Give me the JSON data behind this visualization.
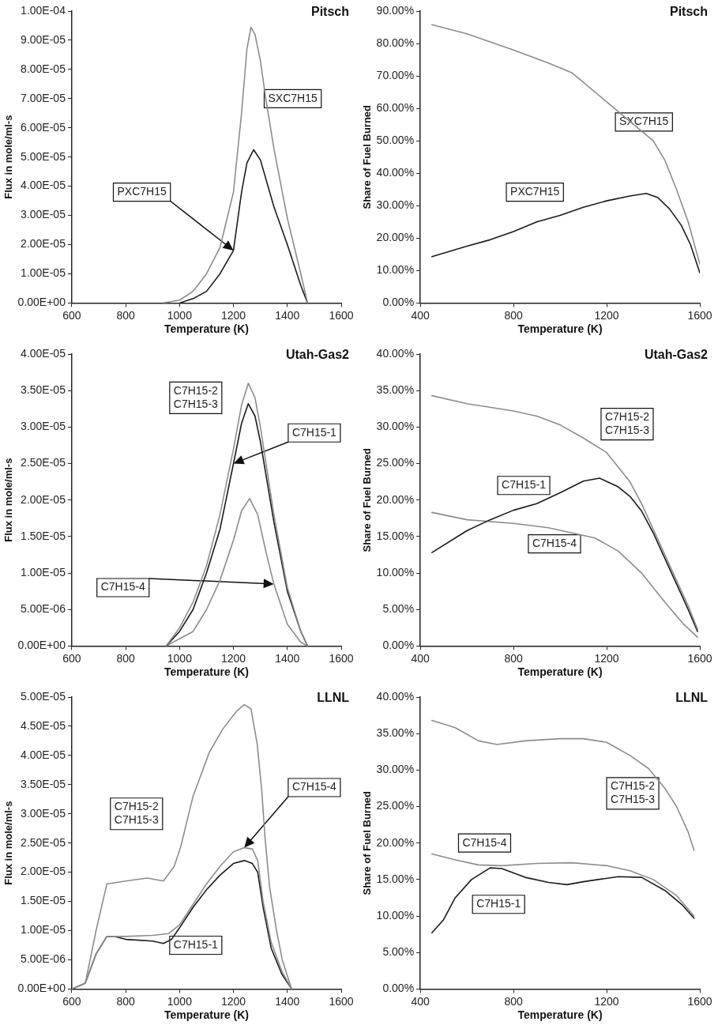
{
  "chart_data": [
    {
      "type": "line",
      "title": "Pitsch",
      "xlabel": "Temperature (K)",
      "ylabel": "Flux in mole/ml-s",
      "xlim": [
        600,
        1600
      ],
      "xticks": [
        600,
        800,
        1000,
        1200,
        1400,
        1600
      ],
      "ylim": [
        0,
        0.0001
      ],
      "yticks": [
        {
          "value": 0,
          "label": "0.00E+00"
        },
        {
          "value": 1e-05,
          "label": "1.00E-05"
        },
        {
          "value": 2e-05,
          "label": "2.00E-05"
        },
        {
          "value": 3e-05,
          "label": "3.00E-05"
        },
        {
          "value": 4e-05,
          "label": "4.00E-05"
        },
        {
          "value": 5e-05,
          "label": "5.00E-05"
        },
        {
          "value": 6e-05,
          "label": "6.00E-05"
        },
        {
          "value": 7e-05,
          "label": "7.00E-05"
        },
        {
          "value": 8e-05,
          "label": "8.00E-05"
        },
        {
          "value": 9e-05,
          "label": "9.00E-05"
        },
        {
          "value": 0.0001,
          "label": "1.00E-04"
        }
      ],
      "grid": false,
      "legend": false,
      "series": [
        {
          "name": "SXC7H15",
          "color": "#8c8c8c",
          "x": [
            940,
            1000,
            1050,
            1100,
            1150,
            1200,
            1230,
            1250,
            1265,
            1280,
            1300,
            1320,
            1350,
            1400,
            1450,
            1475
          ],
          "values": [
            0,
            1e-06,
            4e-06,
            1e-05,
            1.9e-05,
            3.8e-05,
            6.5e-05,
            8.7e-05,
            9.45e-05,
            9.2e-05,
            8.3e-05,
            7e-05,
            5.3e-05,
            2.9e-05,
            1e-05,
            0
          ]
        },
        {
          "name": "PXC7H15",
          "color": "#1a1a1a",
          "x": [
            1000,
            1050,
            1100,
            1150,
            1200,
            1230,
            1250,
            1275,
            1300,
            1350,
            1400,
            1450,
            1475
          ],
          "values": [
            0,
            1.5e-06,
            4e-06,
            1e-05,
            1.8e-05,
            3.8e-05,
            4.8e-05,
            5.25e-05,
            4.9e-05,
            3.3e-05,
            2e-05,
            6e-06,
            0
          ]
        }
      ]
    },
    {
      "type": "line",
      "title": "Pitsch",
      "xlabel": "Temperature (K)",
      "ylabel": "Share of Fuel Burned",
      "xlim": [
        400,
        1600
      ],
      "xticks": [
        400,
        800,
        1200,
        1600
      ],
      "ylim": [
        0,
        90
      ],
      "yticks": [
        {
          "value": 0,
          "label": "0.00%"
        },
        {
          "value": 10,
          "label": "10.00%"
        },
        {
          "value": 20,
          "label": "20.00%"
        },
        {
          "value": 30,
          "label": "30.00%"
        },
        {
          "value": 40,
          "label": "40.00%"
        },
        {
          "value": 50,
          "label": "50.00%"
        },
        {
          "value": 60,
          "label": "60.00%"
        },
        {
          "value": 70,
          "label": "70.00%"
        },
        {
          "value": 80,
          "label": "80.00%"
        },
        {
          "value": 90,
          "label": "90.00%"
        }
      ],
      "grid": false,
      "legend": false,
      "series": [
        {
          "name": "SXC7H15",
          "color": "#8c8c8c",
          "x": [
            450,
            600,
            800,
            950,
            1050,
            1200,
            1300,
            1400,
            1450,
            1500,
            1550,
            1600
          ],
          "values": [
            85.8,
            83,
            78,
            74,
            71,
            62,
            56,
            50,
            44,
            35,
            25,
            12
          ]
        },
        {
          "name": "PXC7H15",
          "color": "#1a1a1a",
          "x": [
            450,
            600,
            700,
            800,
            900,
            1000,
            1100,
            1200,
            1300,
            1370,
            1420,
            1470,
            1520,
            1560,
            1600
          ],
          "values": [
            14.3,
            17.5,
            19.5,
            22,
            25,
            27,
            29.5,
            31.5,
            33,
            33.8,
            32.5,
            29,
            24,
            18,
            9.3
          ]
        }
      ]
    },
    {
      "type": "line",
      "title": "Utah-Gas2",
      "xlabel": "Temperature (K)",
      "ylabel": "Flux in mole/ml-s",
      "xlim": [
        600,
        1600
      ],
      "xticks": [
        600,
        800,
        1000,
        1200,
        1400,
        1600
      ],
      "ylim": [
        0,
        4e-05
      ],
      "yticks": [
        {
          "value": 0,
          "label": "0.00E+00"
        },
        {
          "value": 5e-06,
          "label": "5.00E-06"
        },
        {
          "value": 1e-05,
          "label": "1.00E-05"
        },
        {
          "value": 1.5e-05,
          "label": "1.50E-05"
        },
        {
          "value": 2e-05,
          "label": "2.00E-05"
        },
        {
          "value": 2.5e-05,
          "label": "2.50E-05"
        },
        {
          "value": 3e-05,
          "label": "3.00E-05"
        },
        {
          "value": 3.5e-05,
          "label": "3.50E-05"
        },
        {
          "value": 4e-05,
          "label": "4.00E-05"
        }
      ],
      "grid": false,
      "legend": false,
      "series": [
        {
          "name": "C7H15-2\nC7H15-3",
          "color": "#8c8c8c",
          "x": [
            950,
            1000,
            1050,
            1100,
            1150,
            1200,
            1230,
            1255,
            1280,
            1300,
            1350,
            1400,
            1450,
            1475
          ],
          "values": [
            0,
            2.5e-06,
            6e-06,
            1.1e-05,
            1.8e-05,
            2.7e-05,
            3.3e-05,
            3.6e-05,
            3.4e-05,
            3e-05,
            1.8e-05,
            8e-06,
            2e-06,
            0
          ]
        },
        {
          "name": "C7H15-1",
          "color": "#1a1a1a",
          "x": [
            950,
            1000,
            1050,
            1100,
            1150,
            1200,
            1230,
            1255,
            1280,
            1300,
            1350,
            1400,
            1450,
            1475
          ],
          "values": [
            0,
            2e-06,
            5e-06,
            1e-05,
            1.6e-05,
            2.5e-05,
            3.05e-05,
            3.32e-05,
            3.15e-05,
            2.8e-05,
            1.7e-05,
            7.5e-06,
            2e-06,
            0
          ]
        },
        {
          "name": "C7H15-4",
          "color": "#8c8c8c",
          "x": [
            950,
            1050,
            1100,
            1150,
            1200,
            1230,
            1260,
            1290,
            1320,
            1350,
            1400,
            1450,
            1475
          ],
          "values": [
            0,
            2e-06,
            5e-06,
            9e-06,
            1.45e-05,
            1.85e-05,
            2.02e-05,
            1.8e-05,
            1.3e-05,
            8.5e-06,
            3e-06,
            5e-07,
            0
          ]
        }
      ]
    },
    {
      "type": "line",
      "title": "Utah-Gas2",
      "xlabel": "Temperature (K)",
      "ylabel": "Share of Fuel Burned",
      "xlim": [
        400,
        1600
      ],
      "xticks": [
        400,
        800,
        1200,
        1600
      ],
      "ylim": [
        0,
        40
      ],
      "yticks": [
        {
          "value": 0,
          "label": "0.00%"
        },
        {
          "value": 5,
          "label": "5.00%"
        },
        {
          "value": 10,
          "label": "10.00%"
        },
        {
          "value": 15,
          "label": "15.00%"
        },
        {
          "value": 20,
          "label": "20.00%"
        },
        {
          "value": 25,
          "label": "25.00%"
        },
        {
          "value": 30,
          "label": "30.00%"
        },
        {
          "value": 35,
          "label": "35.00%"
        },
        {
          "value": 40,
          "label": "40.00%"
        }
      ],
      "grid": false,
      "legend": false,
      "series": [
        {
          "name": "C7H15-2\nC7H15-3",
          "color": "#8c8c8c",
          "x": [
            450,
            600,
            800,
            900,
            1000,
            1100,
            1200,
            1300,
            1350,
            1400,
            1450,
            1500,
            1550,
            1590
          ],
          "values": [
            34.3,
            33.2,
            32.2,
            31.5,
            30.3,
            28.5,
            26.5,
            22.5,
            19.5,
            16,
            12.5,
            9,
            5.5,
            2.3
          ]
        },
        {
          "name": "C7H15-1",
          "color": "#1a1a1a",
          "x": [
            450,
            600,
            700,
            800,
            900,
            1000,
            1100,
            1170,
            1250,
            1300,
            1350,
            1400,
            1450,
            1500,
            1550,
            1590
          ],
          "values": [
            12.8,
            15.8,
            17.3,
            18.6,
            19.5,
            21,
            22.6,
            23,
            21.8,
            20.5,
            18.5,
            15.5,
            12,
            8.5,
            5,
            2
          ]
        },
        {
          "name": "C7H15-4",
          "color": "#8c8c8c",
          "x": [
            450,
            600,
            800,
            950,
            1050,
            1150,
            1250,
            1350,
            1450,
            1530,
            1590
          ],
          "values": [
            18.3,
            17.3,
            16.8,
            16.2,
            15.5,
            14.8,
            13,
            10,
            6,
            3,
            1.2
          ]
        }
      ]
    },
    {
      "type": "line",
      "title": "LLNL",
      "xlabel": "Temperature (K)",
      "ylabel": "Flux in mole/ml-s",
      "xlim": [
        600,
        1600
      ],
      "xticks": [
        600,
        800,
        1000,
        1200,
        1400,
        1600
      ],
      "ylim": [
        0,
        5e-05
      ],
      "yticks": [
        {
          "value": 0,
          "label": "0.00E+00"
        },
        {
          "value": 5e-06,
          "label": "5.00E-06"
        },
        {
          "value": 1e-05,
          "label": "1.00E-05"
        },
        {
          "value": 1.5e-05,
          "label": "1.50E-05"
        },
        {
          "value": 2e-05,
          "label": "2.00E-05"
        },
        {
          "value": 2.5e-05,
          "label": "2.50E-05"
        },
        {
          "value": 3e-05,
          "label": "3.00E-05"
        },
        {
          "value": 3.5e-05,
          "label": "3.50E-05"
        },
        {
          "value": 4e-05,
          "label": "4.00E-05"
        },
        {
          "value": 4.5e-05,
          "label": "4.50E-05"
        },
        {
          "value": 5e-05,
          "label": "5.00E-05"
        }
      ],
      "grid": false,
      "legend": false,
      "series": [
        {
          "name": "C7H15-2\nC7H15-3",
          "color": "#8c8c8c",
          "x": [
            600,
            650,
            690,
            730,
            800,
            880,
            940,
            980,
            1005,
            1050,
            1110,
            1160,
            1210,
            1240,
            1265,
            1288,
            1305,
            1317,
            1334,
            1360,
            1381,
            1416
          ],
          "values": [
            0,
            1e-06,
            1e-05,
            1.8e-05,
            1.85e-05,
            1.9e-05,
            1.85e-05,
            2.1e-05,
            2.45e-05,
            3.3e-05,
            4.05e-05,
            4.45e-05,
            4.75e-05,
            4.87e-05,
            4.8e-05,
            4.2e-05,
            3.4e-05,
            2.6e-05,
            1.75e-05,
            1e-05,
            5e-06,
            0
          ]
        },
        {
          "name": "C7H15-4",
          "color": "#8c8c8c",
          "x": [
            600,
            650,
            690,
            730,
            800,
            900,
            960,
            1000,
            1050,
            1100,
            1150,
            1200,
            1240,
            1270,
            1290,
            1310,
            1340,
            1380,
            1416
          ],
          "values": [
            0,
            1e-06,
            6e-06,
            9e-06,
            9e-06,
            9.2e-06,
            9.5e-06,
            1.1e-05,
            1.45e-05,
            1.8e-05,
            2.1e-05,
            2.35e-05,
            2.42e-05,
            2.4e-05,
            2.2e-05,
            1.5e-05,
            8e-06,
            3e-06,
            0
          ]
        },
        {
          "name": "C7H15-1",
          "color": "#1a1a1a",
          "x": [
            600,
            650,
            690,
            730,
            760,
            800,
            900,
            940,
            970,
            1000,
            1050,
            1100,
            1150,
            1200,
            1240,
            1270,
            1290,
            1310,
            1340,
            1380,
            1416
          ],
          "values": [
            0,
            1e-06,
            6e-06,
            9e-06,
            9e-06,
            8.5e-06,
            8.2e-06,
            7.8e-06,
            8.5e-06,
            1.05e-05,
            1.4e-05,
            1.7e-05,
            1.95e-05,
            2.15e-05,
            2.2e-05,
            2.15e-05,
            2e-05,
            1.4e-05,
            7e-06,
            2.5e-06,
            0
          ]
        }
      ]
    },
    {
      "type": "line",
      "title": "LLNL",
      "xlabel": "Temperature (K)",
      "ylabel": "Share of Fuel Burned",
      "xlim": [
        400,
        1600
      ],
      "xticks": [
        400,
        800,
        1200,
        1600
      ],
      "ylim": [
        0,
        40
      ],
      "yticks": [
        {
          "value": 0,
          "label": "0.00%"
        },
        {
          "value": 5,
          "label": "5.00%"
        },
        {
          "value": 10,
          "label": "10.00%"
        },
        {
          "value": 15,
          "label": "15.00%"
        },
        {
          "value": 20,
          "label": "20.00%"
        },
        {
          "value": 25,
          "label": "25.00%"
        },
        {
          "value": 30,
          "label": "30.00%"
        },
        {
          "value": 35,
          "label": "35.00%"
        },
        {
          "value": 40,
          "label": "40.00%"
        }
      ],
      "grid": false,
      "legend": false,
      "series": [
        {
          "name": "C7H15-2\nC7H15-3",
          "color": "#8c8c8c",
          "x": [
            450,
            550,
            650,
            730,
            850,
            1000,
            1100,
            1200,
            1300,
            1380,
            1450,
            1500,
            1550,
            1575
          ],
          "values": [
            36.8,
            35.8,
            34,
            33.5,
            34,
            34.3,
            34.3,
            33.8,
            32,
            30.2,
            27.5,
            25,
            21.5,
            19
          ]
        },
        {
          "name": "C7H15-4",
          "color": "#8c8c8c",
          "x": [
            450,
            550,
            650,
            750,
            900,
            1050,
            1200,
            1300,
            1400,
            1500,
            1575
          ],
          "values": [
            18.5,
            17.7,
            17,
            16.9,
            17.2,
            17.3,
            16.9,
            16.2,
            15,
            12.8,
            10
          ]
        },
        {
          "name": "C7H15-1",
          "color": "#1a1a1a",
          "x": [
            450,
            500,
            550,
            620,
            700,
            750,
            850,
            950,
            1030,
            1100,
            1250,
            1350,
            1450,
            1525,
            1575
          ],
          "values": [
            7.7,
            9.5,
            12.5,
            15,
            16.6,
            16.5,
            15.3,
            14.6,
            14.3,
            14.7,
            15.4,
            15.3,
            13.5,
            11.5,
            9.7
          ]
        }
      ]
    }
  ]
}
